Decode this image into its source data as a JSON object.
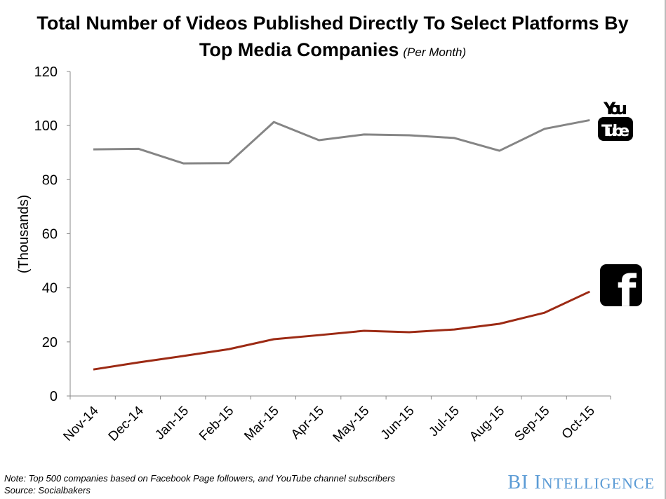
{
  "chart_data": {
    "type": "line",
    "title": "Total Number of Videos Published Directly To Select Platforms By Top Media Companies",
    "subtitle": "(Per Month)",
    "ylabel": "(Thousands)",
    "xlabel": "",
    "ylim": [
      0,
      120
    ],
    "yticks": [
      0,
      20,
      40,
      60,
      80,
      100,
      120
    ],
    "grid": false,
    "categories": [
      "Nov-14",
      "Dec-14",
      "Jan-15",
      "Feb-15",
      "Mar-15",
      "Apr-15",
      "May-15",
      "Jun-15",
      "Jul-15",
      "Aug-15",
      "Sep-15",
      "Oct-15"
    ],
    "series": [
      {
        "name": "YouTube",
        "color": "#858585",
        "values": [
          91.2,
          91.4,
          86.0,
          86.1,
          101.3,
          94.6,
          96.7,
          96.4,
          95.4,
          90.7,
          98.8,
          102.0
        ]
      },
      {
        "name": "Facebook",
        "color": "#9c2a14",
        "values": [
          9.8,
          12.4,
          14.8,
          17.3,
          21.0,
          22.5,
          24.1,
          23.6,
          24.6,
          26.7,
          30.8,
          38.6
        ]
      }
    ],
    "legend": "series identified by logos at right end of lines"
  },
  "logos": {
    "youtube_top": "You",
    "youtube_bottom": "Tube",
    "facebook": "f"
  },
  "footer": {
    "note": "Note: Top 500 companies based on Facebook Page followers, and YouTube channel subscribers",
    "source": "Source: Socialbakers",
    "brand_first": "BI",
    "brand_second_initial": "I",
    "brand_second_rest": "NTELLIGENCE",
    "brand_color": "#5b9bd5"
  }
}
